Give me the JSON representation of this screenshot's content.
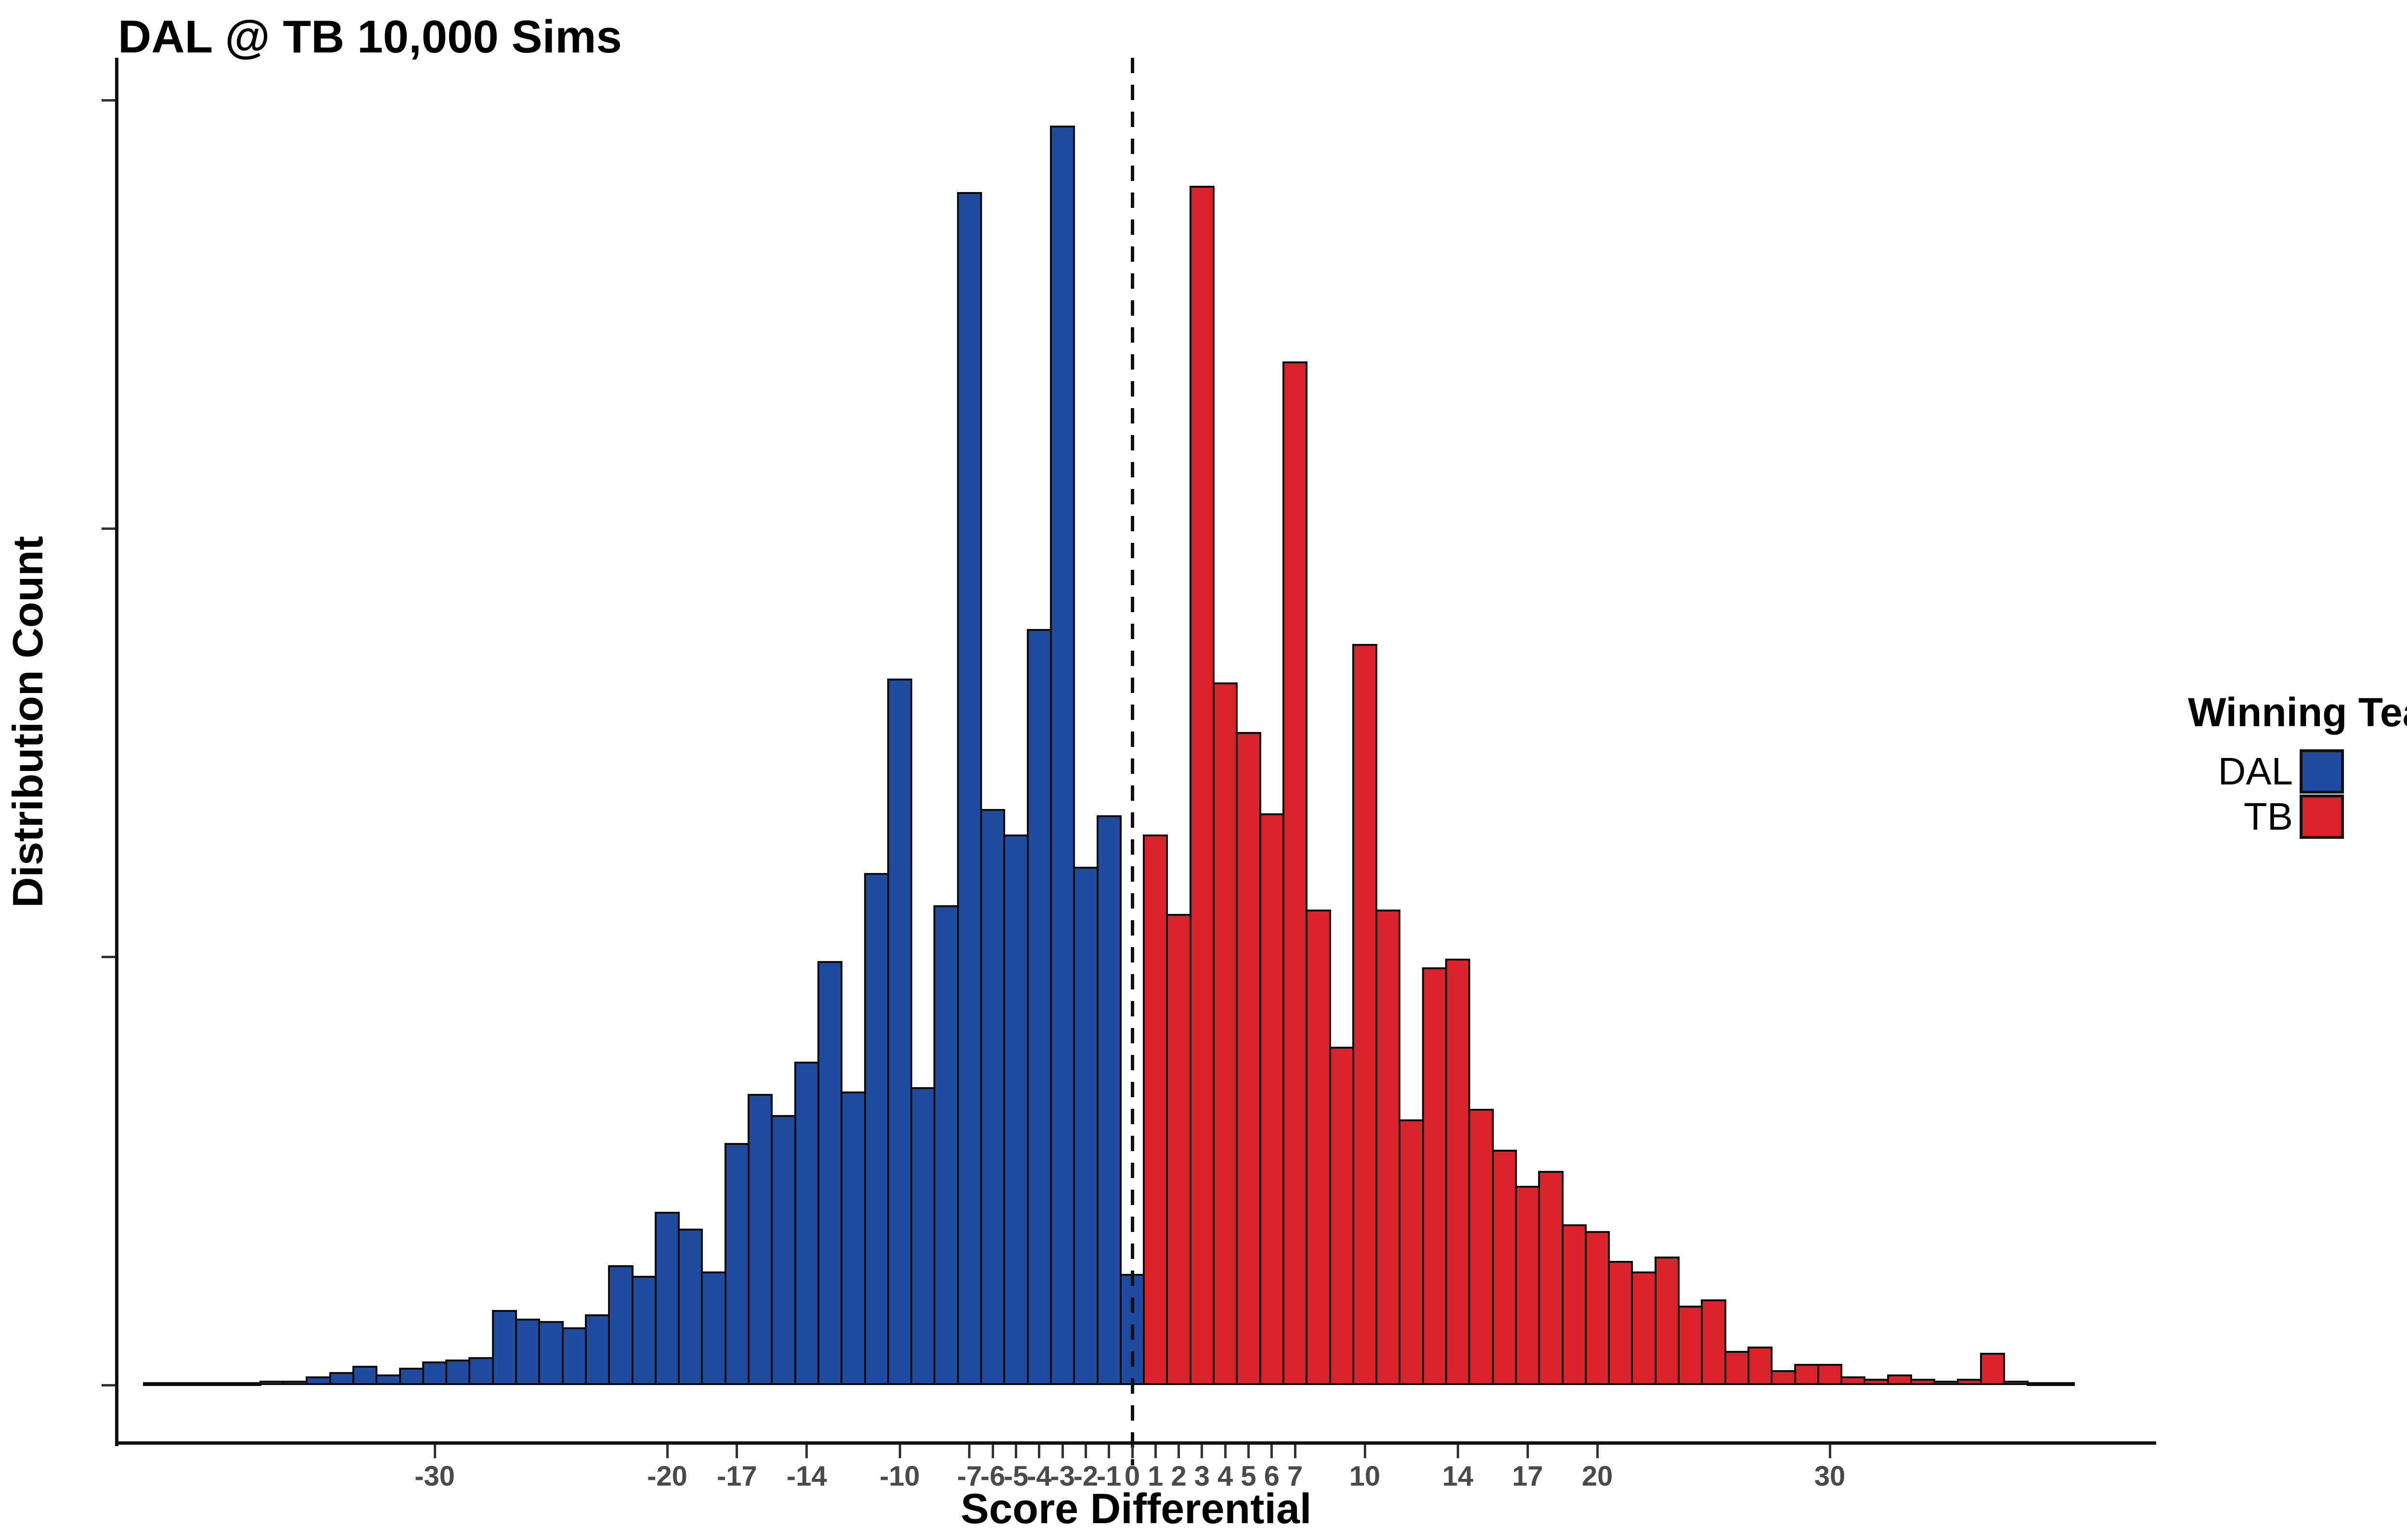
{
  "header": {
    "title": "DAL @ TB 10,000 Sims"
  },
  "chart_data": {
    "type": "bar",
    "subtype": "histogram",
    "title": "DAL @ TB 10,000 Sims",
    "xlabel": "Score Differential",
    "ylabel": "Distribution Count",
    "xlim": [
      -43.6,
      43.9
    ],
    "ylim": [
      0,
      620
    ],
    "grid": false,
    "bin_width": 1,
    "reference_line_x": 0,
    "x_ticks": [
      -30,
      -20,
      -17,
      -14,
      -10,
      -7,
      -6,
      -5,
      -4,
      -3,
      -2,
      -1,
      0,
      1,
      2,
      3,
      4,
      5,
      6,
      7,
      10,
      14,
      17,
      20,
      30
    ],
    "y_ticks": [
      0,
      200,
      400,
      600
    ],
    "legend_title": "Winning Team",
    "legend_position": "right",
    "series": [
      {
        "name": "DAL",
        "color": "#1E4B9F",
        "x_start": -42,
        "note_x_meaning": "bin centers from -42 to 0",
        "values": [
          1,
          1,
          1,
          1,
          1,
          2,
          2,
          4,
          6,
          9,
          5,
          8,
          11,
          12,
          13,
          35,
          31,
          30,
          27,
          33,
          56,
          51,
          81,
          73,
          53,
          113,
          136,
          126,
          151,
          198,
          137,
          239,
          330,
          139,
          224,
          557,
          269,
          257,
          353,
          588,
          242,
          266,
          52
        ]
      },
      {
        "name": "TB",
        "color": "#D9222A",
        "x_start": 1,
        "note_x_meaning": "bin centers from 1 to 40",
        "values": [
          257,
          220,
          560,
          328,
          305,
          267,
          478,
          222,
          158,
          346,
          222,
          124,
          195,
          199,
          129,
          110,
          93,
          100,
          75,
          72,
          58,
          53,
          60,
          37,
          40,
          16,
          18,
          7,
          10,
          10,
          4,
          3,
          5,
          3,
          2,
          3,
          15,
          2,
          1,
          1
        ]
      }
    ],
    "colors": {
      "axis": "#111111",
      "tick_text": "#4a4a4a",
      "bar_outline": "#0d0d0d",
      "reference_line": "#111111"
    }
  }
}
